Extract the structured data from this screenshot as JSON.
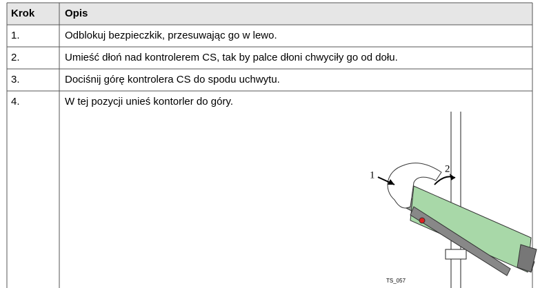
{
  "table": {
    "header": [
      "Krok",
      "Opis"
    ],
    "rows": [
      [
        "1.",
        "Odblokuj bezpieczkik, przesuwając go w lewo."
      ],
      [
        "2.",
        "Umieść dłoń nad kontrolerem CS, tak by palce dłoni chwyciły go od dołu."
      ],
      [
        "3.",
        "Dociśnij górę kontrolera CS do spodu uchwytu."
      ],
      [
        "4.",
        "W tej pozycji unieś kontorler do góry."
      ]
    ]
  },
  "figure": {
    "callouts": [
      "1",
      "2"
    ],
    "code": "TS_057"
  }
}
